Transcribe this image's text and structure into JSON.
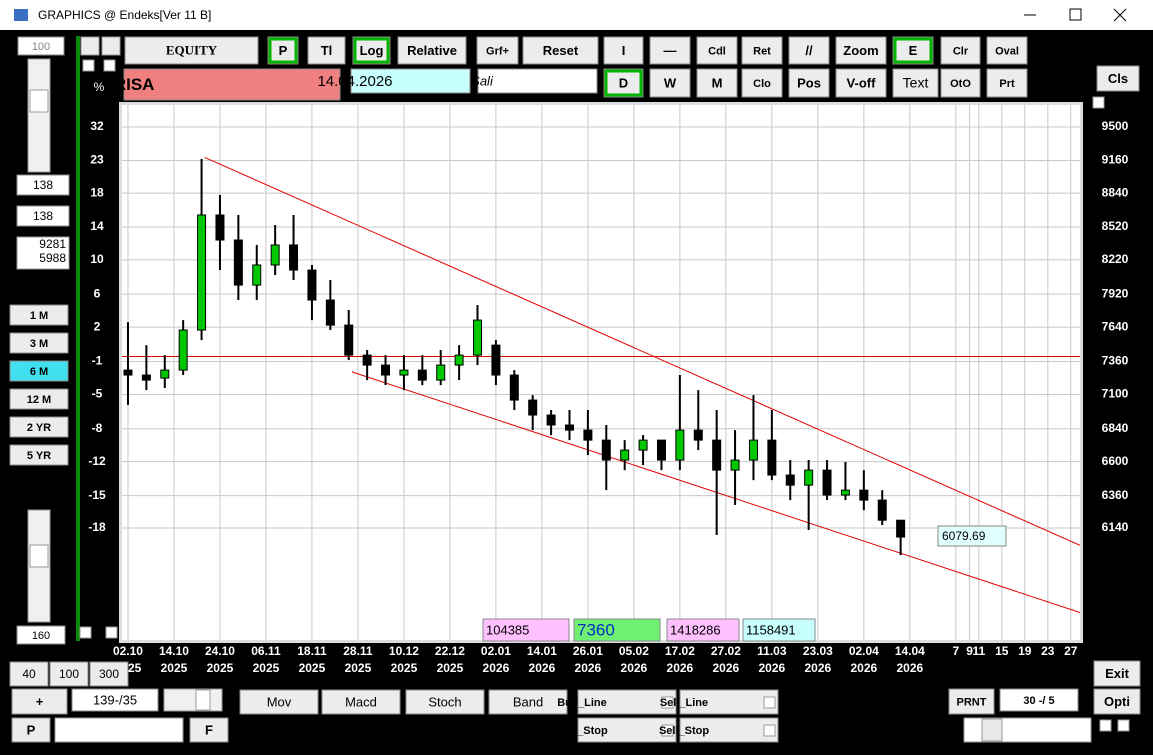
{
  "window": {
    "title": "GRAPHICS @ Endeks[Ver 11 B]"
  },
  "toolbar": {
    "row1": [
      "EQUITY",
      "P",
      "Tl",
      "Log",
      "Relative",
      "Grf+",
      "Reset",
      "I",
      "—",
      "Cdl",
      "Ret",
      "//",
      "Zoom",
      "E",
      "Clr",
      "Oval"
    ],
    "symbol": "BRISA",
    "date": "14.04.2026",
    "field": "Sali",
    "row2": [
      "D",
      "W",
      "M",
      "Clo",
      "Pos",
      "V-off",
      "Text",
      "OtO",
      "Prt"
    ],
    "cls": "Cls"
  },
  "left_panel": {
    "zoom": "100",
    "fields": [
      "138",
      "138"
    ],
    "range_high": "9281",
    "range_low": "5988",
    "periods": [
      "1 M",
      "3 M",
      "6 M",
      "12 M",
      "2 YR",
      "5 YR"
    ],
    "bottom_field": "160"
  },
  "bottom": {
    "spans": [
      "40",
      "100",
      "300"
    ],
    "plus": "+",
    "position": "139-/35",
    "indicators": [
      "Mov",
      "Macd",
      "Stoch",
      "Band"
    ],
    "lines": [
      "Buy_Line",
      "Sell_Line",
      "Buy_Stop",
      "Sell_Stop"
    ],
    "p": "P",
    "f": "F",
    "prnt": "PRNT",
    "ratio": "30 -/ 5",
    "exit": "Exit",
    "opti": "Opti"
  },
  "chart_data": {
    "type": "candlestick",
    "x": [
      0,
      4,
      8,
      12,
      16,
      20,
      24,
      28,
      32,
      36,
      40,
      44,
      48,
      52,
      56,
      60,
      64,
      68,
      72,
      76,
      80,
      84,
      88,
      92,
      96,
      100,
      104,
      108,
      112,
      116,
      120,
      124,
      128,
      132,
      136,
      140,
      144,
      148,
      152,
      156,
      160,
      164,
      168
    ],
    "open": [
      7291,
      7252,
      7228,
      7291,
      7616,
      8632,
      8400,
      7998,
      8175,
      8355,
      8130,
      7869,
      7657,
      7411,
      7331,
      7252,
      7291,
      7212,
      7331,
      7411,
      7492,
      7252,
      7057,
      6943,
      6868,
      6830,
      6756,
      6611,
      6683,
      6756,
      6611,
      6830,
      6756,
      6539,
      6611,
      6756,
      6504,
      6433,
      6539,
      6364,
      6398,
      6329,
      6192
    ],
    "high": [
      7682,
      7492,
      7411,
      7699,
      9175,
      8822,
      8632,
      8355,
      8538,
      8632,
      8175,
      8042,
      7784,
      7452,
      7411,
      7411,
      7411,
      7452,
      7492,
      7826,
      7533,
      7291,
      7095,
      6981,
      6981,
      6981,
      6868,
      6756,
      6793,
      6756,
      7252,
      7134,
      6981,
      6830,
      7095,
      6981,
      6611,
      6611,
      6611,
      6597,
      6539,
      6398,
      6192
    ],
    "low": [
      7019,
      7134,
      7150,
      7252,
      7533,
      8130,
      7869,
      7869,
      8086,
      8042,
      7699,
      7616,
      7371,
      7212,
      7173,
      7134,
      7173,
      7173,
      7212,
      7331,
      7173,
      6981,
      6830,
      6793,
      6756,
      6647,
      6398,
      6539,
      6575,
      6539,
      6539,
      6683,
      6093,
      6295,
      6468,
      6468,
      6329,
      6126,
      6329,
      6329,
      6260,
      6159,
      5961
    ],
    "close": [
      7252,
      7212,
      7291,
      7616,
      8632,
      8400,
      7998,
      8175,
      8355,
      8130,
      7869,
      7657,
      7411,
      7331,
      7252,
      7291,
      7212,
      7331,
      7411,
      7699,
      7252,
      7057,
      6943,
      6868,
      6830,
      6756,
      6611,
      6683,
      6756,
      6611,
      6830,
      6756,
      6539,
      6611,
      6756,
      6504,
      6433,
      6539,
      6364,
      6398,
      6329,
      6192,
      6079.69
    ],
    "up_color": "#00c800",
    "down_color": "#000000",
    "ylim": [
      5435,
      9730
    ],
    "log": true,
    "yticks": [
      9500,
      9160,
      8840,
      8520,
      8220,
      7920,
      7640,
      7360,
      7100,
      6840,
      6600,
      6360,
      6140
    ],
    "left_labels": [
      32,
      23,
      18,
      14,
      10,
      6,
      2,
      -1,
      -5,
      -8,
      -12,
      -15,
      -18
    ],
    "left_unit": "%",
    "xlim": [
      -1.3,
      207
    ],
    "xticks": [
      {
        "value": 0,
        "label": "02.10\n2025"
      },
      {
        "value": 10,
        "label": "14.10\n2025"
      },
      {
        "value": 20,
        "label": "24.10\n2025"
      },
      {
        "value": 30,
        "label": "06.11\n2025"
      },
      {
        "value": 40,
        "label": "18.11\n2025"
      },
      {
        "value": 50,
        "label": "28.11\n2025"
      },
      {
        "value": 60,
        "label": "10.12\n2025"
      },
      {
        "value": 70,
        "label": "22.12\n2025"
      },
      {
        "value": 80,
        "label": "02.01\n2026"
      },
      {
        "value": 90,
        "label": "14.01\n2026"
      },
      {
        "value": 100,
        "label": "26.01\n2026"
      },
      {
        "value": 110,
        "label": "05.02\n2026"
      },
      {
        "value": 120,
        "label": "17.02\n2026"
      },
      {
        "value": 130,
        "label": "27.02\n2026"
      },
      {
        "value": 140,
        "label": "11.03\n2026"
      },
      {
        "value": 150,
        "label": "23.03\n2026"
      },
      {
        "value": 160,
        "label": "02.04\n2026"
      },
      {
        "value": 170,
        "label": "14.04\n2026"
      },
      7,
      9,
      11,
      15,
      19,
      23,
      27
    ],
    "future_x": [
      180,
      183,
      185,
      190,
      195,
      200,
      205
    ],
    "grid": true,
    "trend_lines": [
      {
        "x": [
          16.7,
          207
        ],
        "y": [
          9190,
          6025
        ]
      },
      {
        "x": [
          48.7,
          207
        ],
        "y": [
          7277,
          5600
        ]
      }
    ],
    "hline": 7400,
    "line_color": "#e00000",
    "info_boxes": [
      "104385",
      "7360",
      "1418286",
      "1158491"
    ]
  }
}
